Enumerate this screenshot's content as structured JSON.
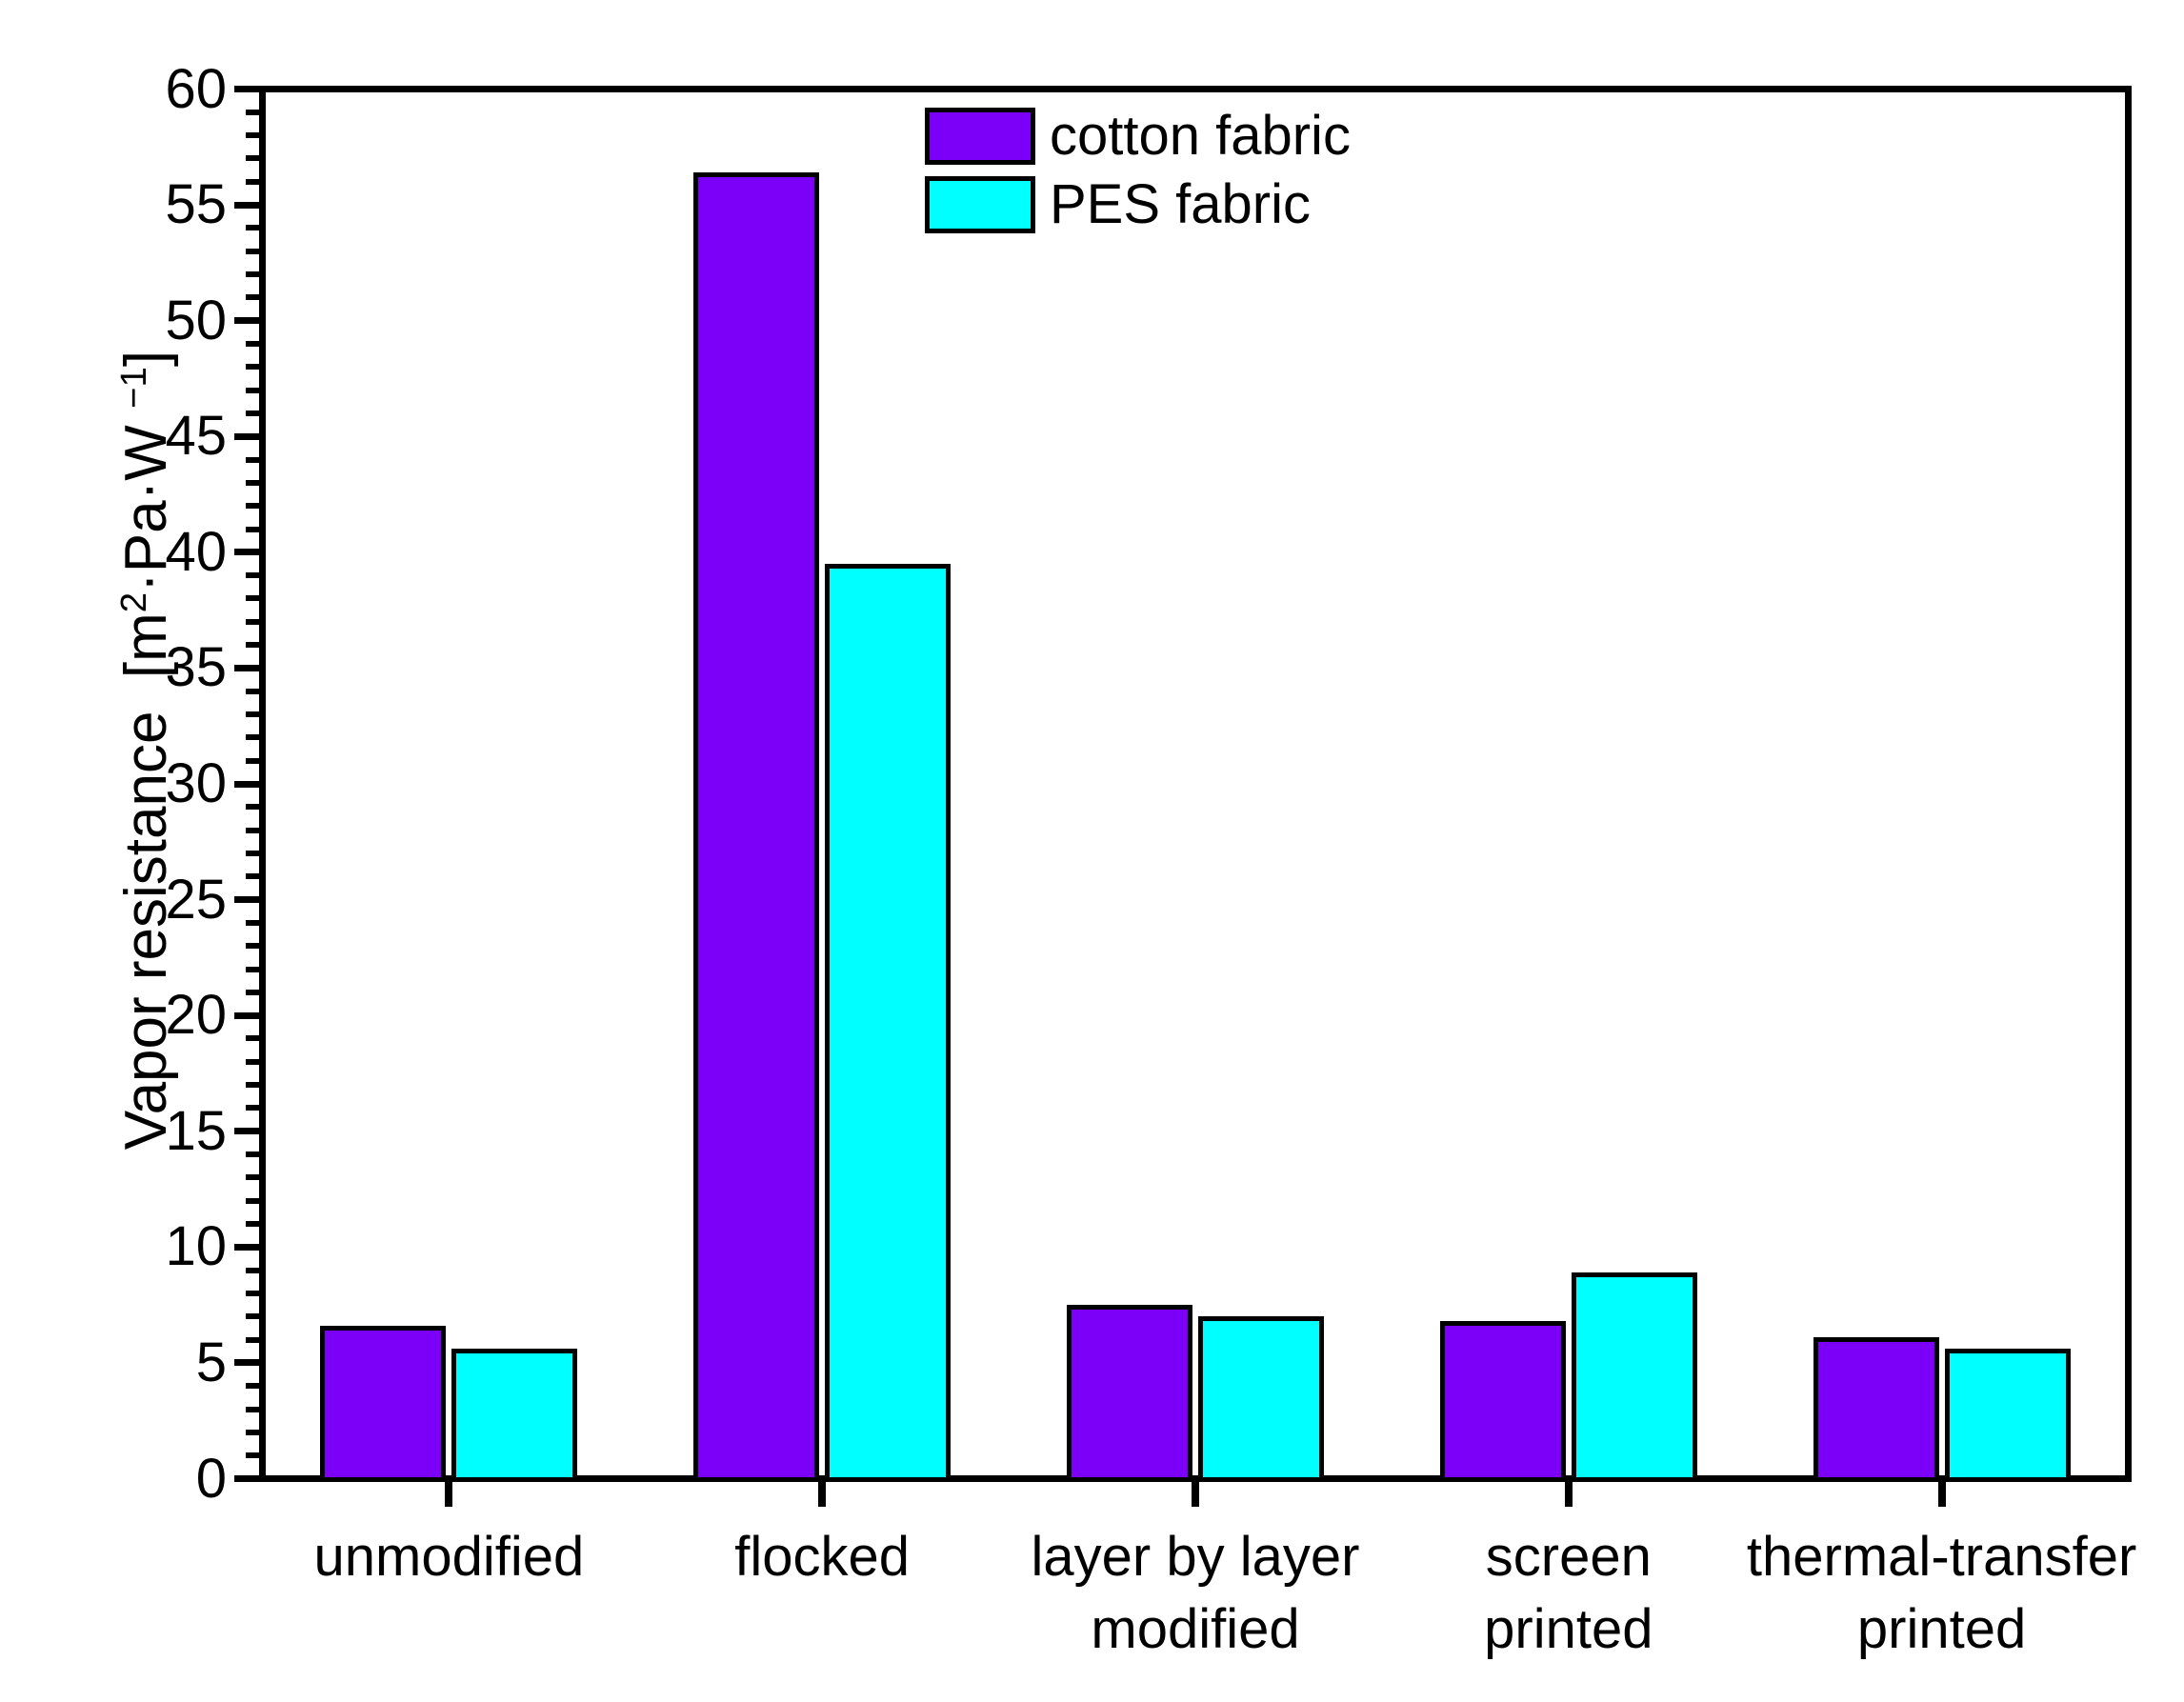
{
  "chart_data": {
    "type": "bar",
    "title": "",
    "ylabel": "Vapor resistance [m²·Pa·W⁻¹]",
    "ylabel_parts": {
      "prefix": "Vapor resistance  [m",
      "sup1": "2",
      "mid": "·Pa·W ",
      "sup2": "−1",
      "suffix": "]"
    },
    "categories": [
      "unmodified",
      "flocked",
      "layer by layer modified",
      "screen printed",
      "thermal-transfer printed"
    ],
    "category_label_lines": [
      [
        "unmodified"
      ],
      [
        "flocked"
      ],
      [
        "layer by layer",
        "modified"
      ],
      [
        "screen",
        "printed"
      ],
      [
        "thermal-transfer",
        "printed"
      ]
    ],
    "series": [
      {
        "name": "cotton fabric",
        "color": "#7C00F8",
        "values": [
          6.5,
          56.3,
          7.4,
          6.7,
          6.0
        ]
      },
      {
        "name": "PES fabric",
        "color": "#00FFFF",
        "values": [
          5.5,
          39.4,
          6.9,
          8.8,
          5.5
        ]
      }
    ],
    "ylim": [
      0,
      60
    ],
    "y_major_step": 5,
    "y_minor_step": 1,
    "y_tick_labels": [
      "0",
      "5",
      "10",
      "15",
      "20",
      "25",
      "30",
      "35",
      "40",
      "45",
      "50",
      "55",
      "60"
    ],
    "xlabel": "",
    "grid": false,
    "legend_position": "top-center",
    "bar_border_color": "#000000",
    "axis_color": "#000000"
  }
}
